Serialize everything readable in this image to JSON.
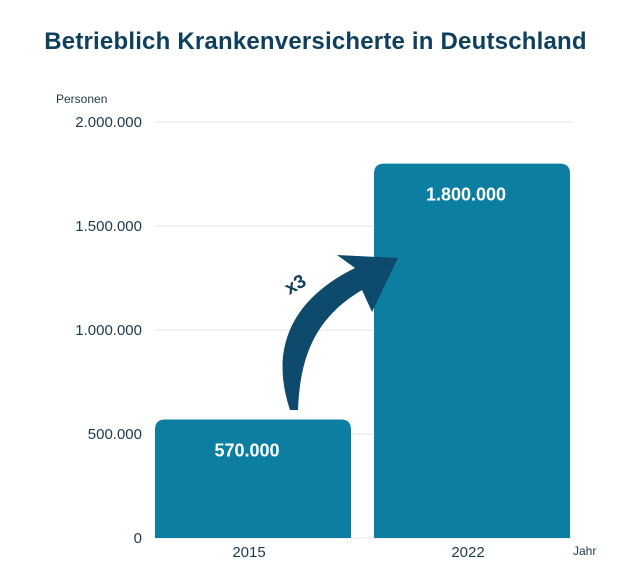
{
  "chart_data": {
    "type": "bar",
    "title": "Betrieblich Krankenversicherte in Deutschland",
    "ylabel": "Personen",
    "xlabel": "Jahr",
    "categories": [
      "2015",
      "2022"
    ],
    "values": [
      570000,
      1800000
    ],
    "value_labels": [
      "570.000",
      "1.800.000"
    ],
    "ylim": [
      0,
      2000000
    ],
    "yticks": [
      0,
      500000,
      1000000,
      1500000,
      2000000
    ],
    "ytick_labels": [
      "0",
      "500.000",
      "1.000.000",
      "1.500.000",
      "2.000.000"
    ],
    "grid": true,
    "annotation": "x3",
    "colors": {
      "bar": "#0b7ea1",
      "arrow": "#0e4a6b",
      "title": "#0e3f5c",
      "grid": "#e6e6e6"
    }
  }
}
